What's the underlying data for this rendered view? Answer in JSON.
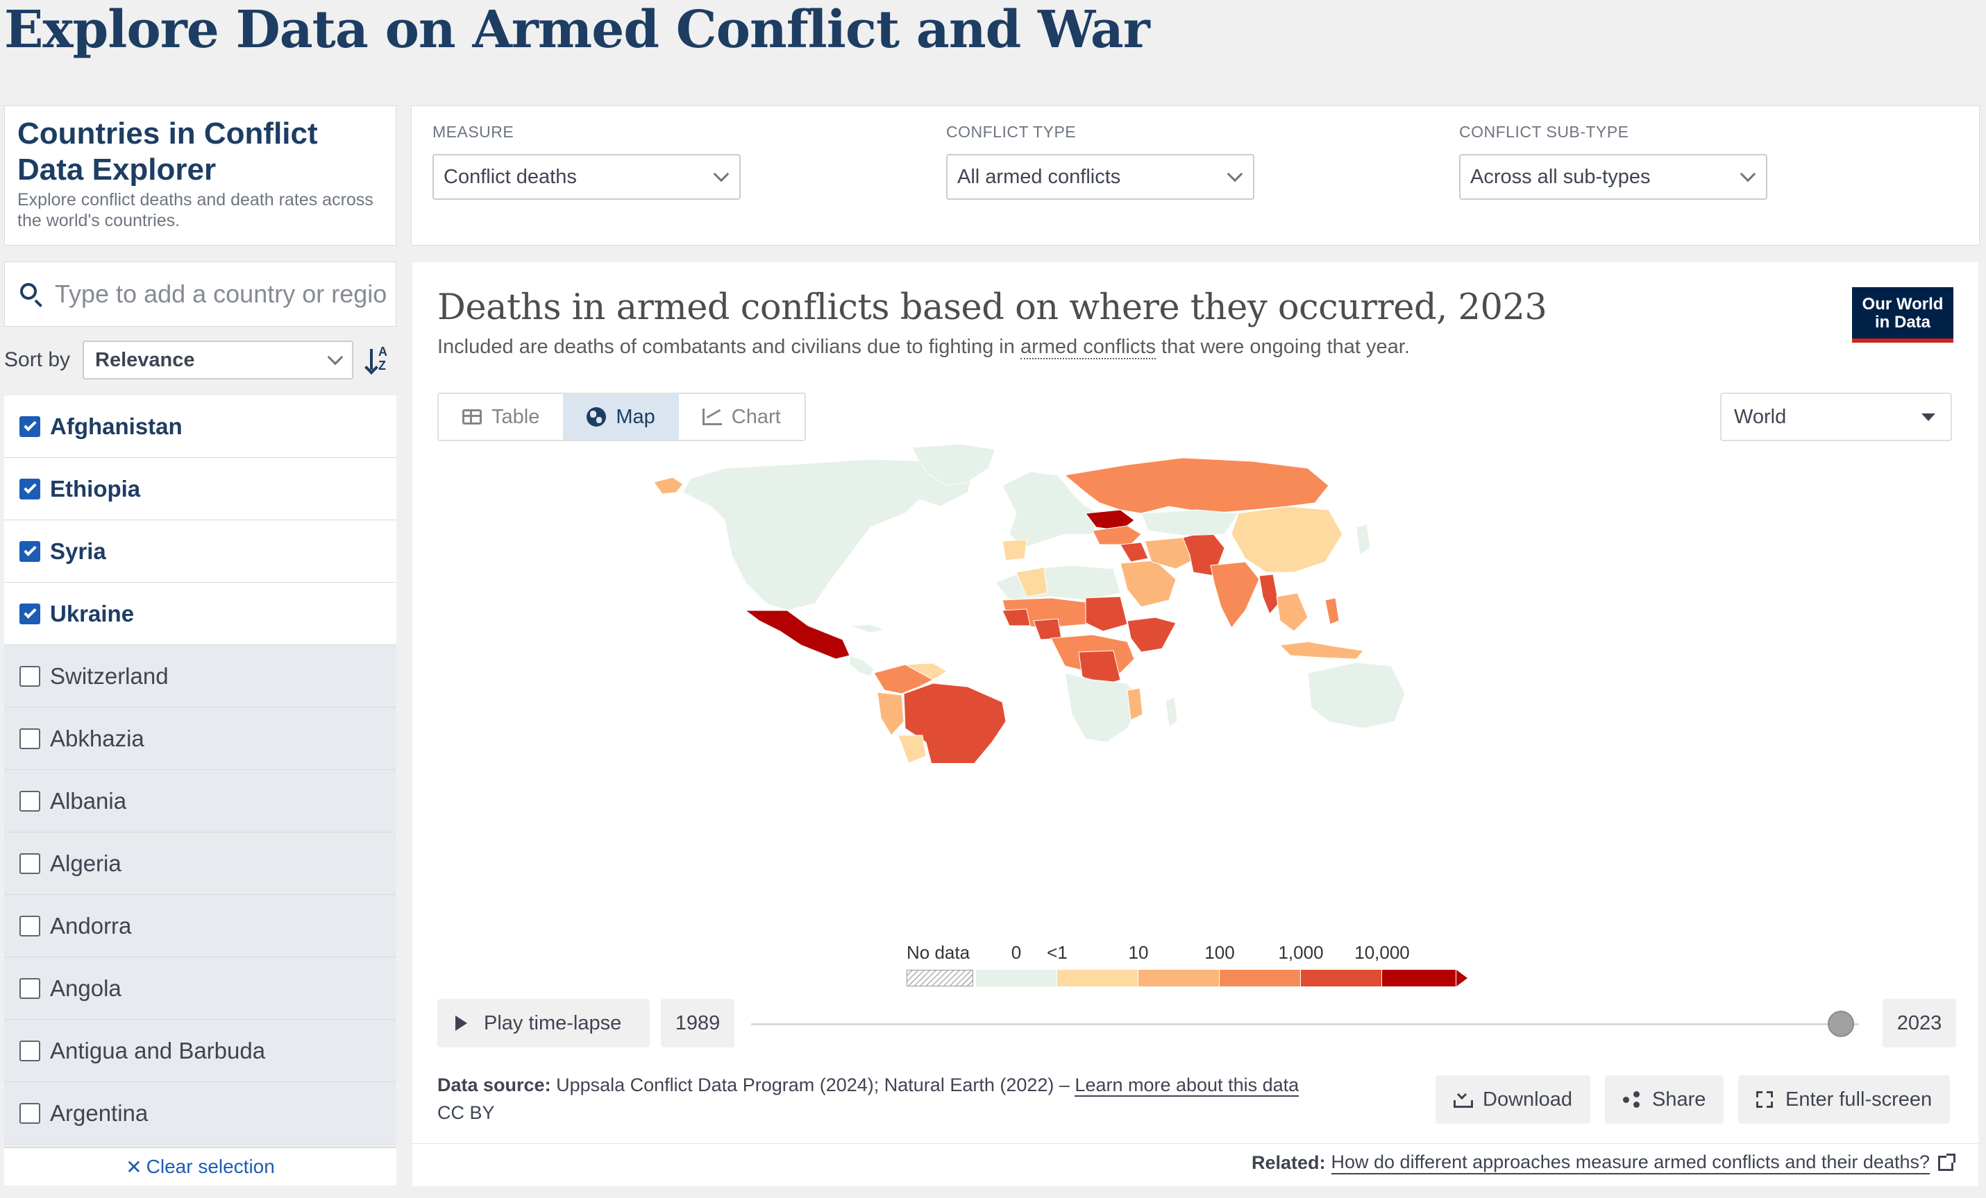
{
  "page": {
    "title": "Explore Data on Armed Conflict and War"
  },
  "intro": {
    "title": "Countries in Conflict Data Explorer",
    "description": "Explore conflict deaths and death rates across the world's countries."
  },
  "controls": [
    {
      "label": "MEASURE",
      "value": "Conflict deaths"
    },
    {
      "label": "CONFLICT TYPE",
      "value": "All armed conflicts"
    },
    {
      "label": "CONFLICT SUB-TYPE",
      "value": "Across all sub-types"
    }
  ],
  "search": {
    "placeholder": "Type to add a country or region"
  },
  "sort": {
    "label": "Sort by",
    "value": "Relevance",
    "icon": "sort-descending-icon"
  },
  "entities": [
    {
      "name": "Afghanistan",
      "selected": true
    },
    {
      "name": "Ethiopia",
      "selected": true
    },
    {
      "name": "Syria",
      "selected": true
    },
    {
      "name": "Ukraine",
      "selected": true
    },
    {
      "name": "Switzerland",
      "selected": false
    },
    {
      "name": "Abkhazia",
      "selected": false
    },
    {
      "name": "Albania",
      "selected": false
    },
    {
      "name": "Algeria",
      "selected": false
    },
    {
      "name": "Andorra",
      "selected": false
    },
    {
      "name": "Angola",
      "selected": false
    },
    {
      "name": "Antigua and Barbuda",
      "selected": false
    },
    {
      "name": "Argentina",
      "selected": false
    }
  ],
  "clear_selection": {
    "label": "Clear selection",
    "icon": "close-icon"
  },
  "chart": {
    "title": "Deaths in armed conflicts based on where they occurred, 2023",
    "subtitle_before": "Included are deaths of combatants and civilians due to fighting in ",
    "subtitle_link": "armed conflicts",
    "subtitle_after": " that were ongoing that year.",
    "logo_line1": "Our World",
    "logo_line2": "in Data",
    "tabs": [
      {
        "label": "Table",
        "icon": "table-icon",
        "active": false
      },
      {
        "label": "Map",
        "icon": "globe-icon",
        "active": true
      },
      {
        "label": "Chart",
        "icon": "line-chart-icon",
        "active": false
      }
    ],
    "region": "World"
  },
  "legend": {
    "no_data_label": "No data",
    "ticks": [
      "0",
      "<1",
      "10",
      "100",
      "1,000",
      "10,000"
    ],
    "colors": [
      "#e6f1e9",
      "#fed9a0",
      "#fdb67a",
      "#f88a57",
      "#e14d34",
      "#b30000"
    ]
  },
  "timeline": {
    "play_label": "Play time-lapse",
    "start_year": "1989",
    "end_year": "2023",
    "position": 1.0
  },
  "footer": {
    "source_label": "Data source:",
    "source_text": " Uppsala Conflict Data Program (2024); Natural Earth (2022) – ",
    "source_link": "Learn more about this data",
    "license": "CC BY",
    "download_label": "Download",
    "share_label": "Share",
    "fullscreen_label": "Enter full-screen",
    "related_label": "Related:",
    "related_link": "How do different approaches measure armed conflicts and their deaths?"
  },
  "map_colors": {
    "none": "#e6f1e9",
    "lt1": "#fed9a0",
    "ten": "#fdb67a",
    "hundred": "#f88a57",
    "thousand": "#e14d34",
    "tenthousand": "#b30000"
  }
}
